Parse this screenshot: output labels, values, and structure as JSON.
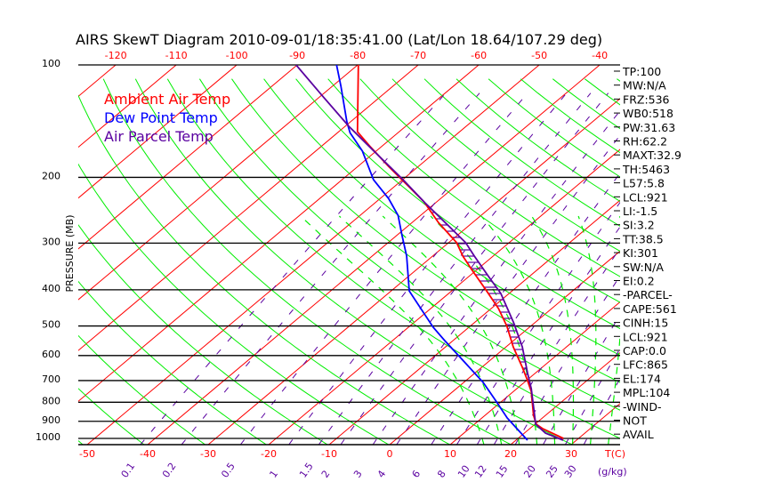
{
  "chart_data": {
    "type": "line",
    "subtype": "skew-t log-p",
    "title": "AIRS SkewT Diagram 2010-09-01/18:35:41.00 (Lat/Lon 18.64/107.29 deg)",
    "ylabel": "PRESSURE (MB)",
    "xlabel": "T(C)",
    "mixing_ratio_label": "(g/kg)",
    "ylim": [
      1039,
      100
    ],
    "pressure_ticks": [
      100,
      200,
      300,
      400,
      500,
      600,
      700,
      800,
      900,
      1000
    ],
    "top_temp_ticks": [
      -120,
      -110,
      -100,
      -90,
      -80,
      -70,
      -60,
      -50,
      -40
    ],
    "bottom_temp_ticks": [
      -50,
      -40,
      -30,
      -20,
      -10,
      0,
      10,
      20,
      30
    ],
    "mixing_ratio_ticks": [
      "0.1",
      "0.2",
      "0.5",
      "1",
      "1.5",
      "2",
      "3",
      "4",
      "6",
      "8",
      "10",
      "12",
      "15",
      "20",
      "25",
      "30"
    ],
    "legend": [
      {
        "label": "Ambient Air Temp",
        "color": "#ff0000"
      },
      {
        "label": "Dew Point Temp",
        "color": "#0000ff"
      },
      {
        "label": "Air Parcel Temp",
        "color": "#5a00a0"
      }
    ],
    "series": [
      {
        "name": "Ambient Air Temp",
        "color": "#ff0000",
        "p": [
          100,
          151,
          166,
          187,
          204,
          233,
          264,
          299,
          325,
          353,
          403,
          449,
          501,
          569,
          645,
          697,
          748,
          867,
          916,
          941,
          1000
        ],
        "t": [
          -79.9,
          -66.9,
          -61.7,
          -54.9,
          -49.8,
          -42.0,
          -35.7,
          -28.7,
          -25.0,
          -20.9,
          -14.2,
          -8.8,
          -3.9,
          1.2,
          6.7,
          10.0,
          12.9,
          18.0,
          20.2,
          22.1,
          27.5
        ]
      },
      {
        "name": "Dew Point Temp",
        "color": "#0000ff",
        "p": [
          100,
          114,
          142,
          152,
          170,
          203,
          228,
          253,
          284,
          325,
          403,
          504,
          547,
          607,
          708,
          799,
          882,
          1011
        ],
        "t": [
          -83.5,
          -78.6,
          -70.6,
          -67.9,
          -62.3,
          -54.8,
          -48.6,
          -43.7,
          -39.4,
          -34.3,
          -27.0,
          -15.9,
          -11.4,
          -5.5,
          3.2,
          9.3,
          14.2,
          21.9
        ]
      },
      {
        "name": "Air Parcel Temp",
        "color": "#5a00a0",
        "p": [
          100,
          122,
          146,
          170,
          203,
          233,
          268,
          299,
          325,
          371,
          409,
          490,
          569,
          670,
          736,
          848,
          916,
          968,
          1011
        ],
        "t": [
          -90.2,
          -79.3,
          -69.4,
          -60.4,
          -49.9,
          -42.0,
          -33.7,
          -27.2,
          -23.1,
          -16.4,
          -11.4,
          -3.5,
          2.7,
          8.8,
          12.4,
          17.4,
          20.1,
          23.5,
          27.8
        ]
      }
    ],
    "background": {
      "isotherm_color": "#ff0000",
      "dry_adiabat_color": "#00ee00",
      "moist_adiabat_color": "#00ee00",
      "mixing_ratio_color": "#5a00a0",
      "isobar_color": "#000000"
    }
  },
  "indices": [
    "TP:100",
    "MW:N/A",
    "FRZ:536",
    "WB0:518",
    "PW:31.63",
    "RH:62.2",
    "MAXT:32.9",
    "TH:5463",
    "L57:5.8",
    "LCL:921",
    "LI:-1.5",
    "SI:3.2",
    "TT:38.5",
    "KI:301",
    "SW:N/A",
    "EI:0.2",
    "-PARCEL-",
    "CAPE:561",
    "CINH:15",
    "LCL:921",
    "CAP:0.0",
    "LFC:865",
    "EL:174",
    "MPL:104",
    "-WIND-",
    "NOT",
    "AVAIL"
  ]
}
